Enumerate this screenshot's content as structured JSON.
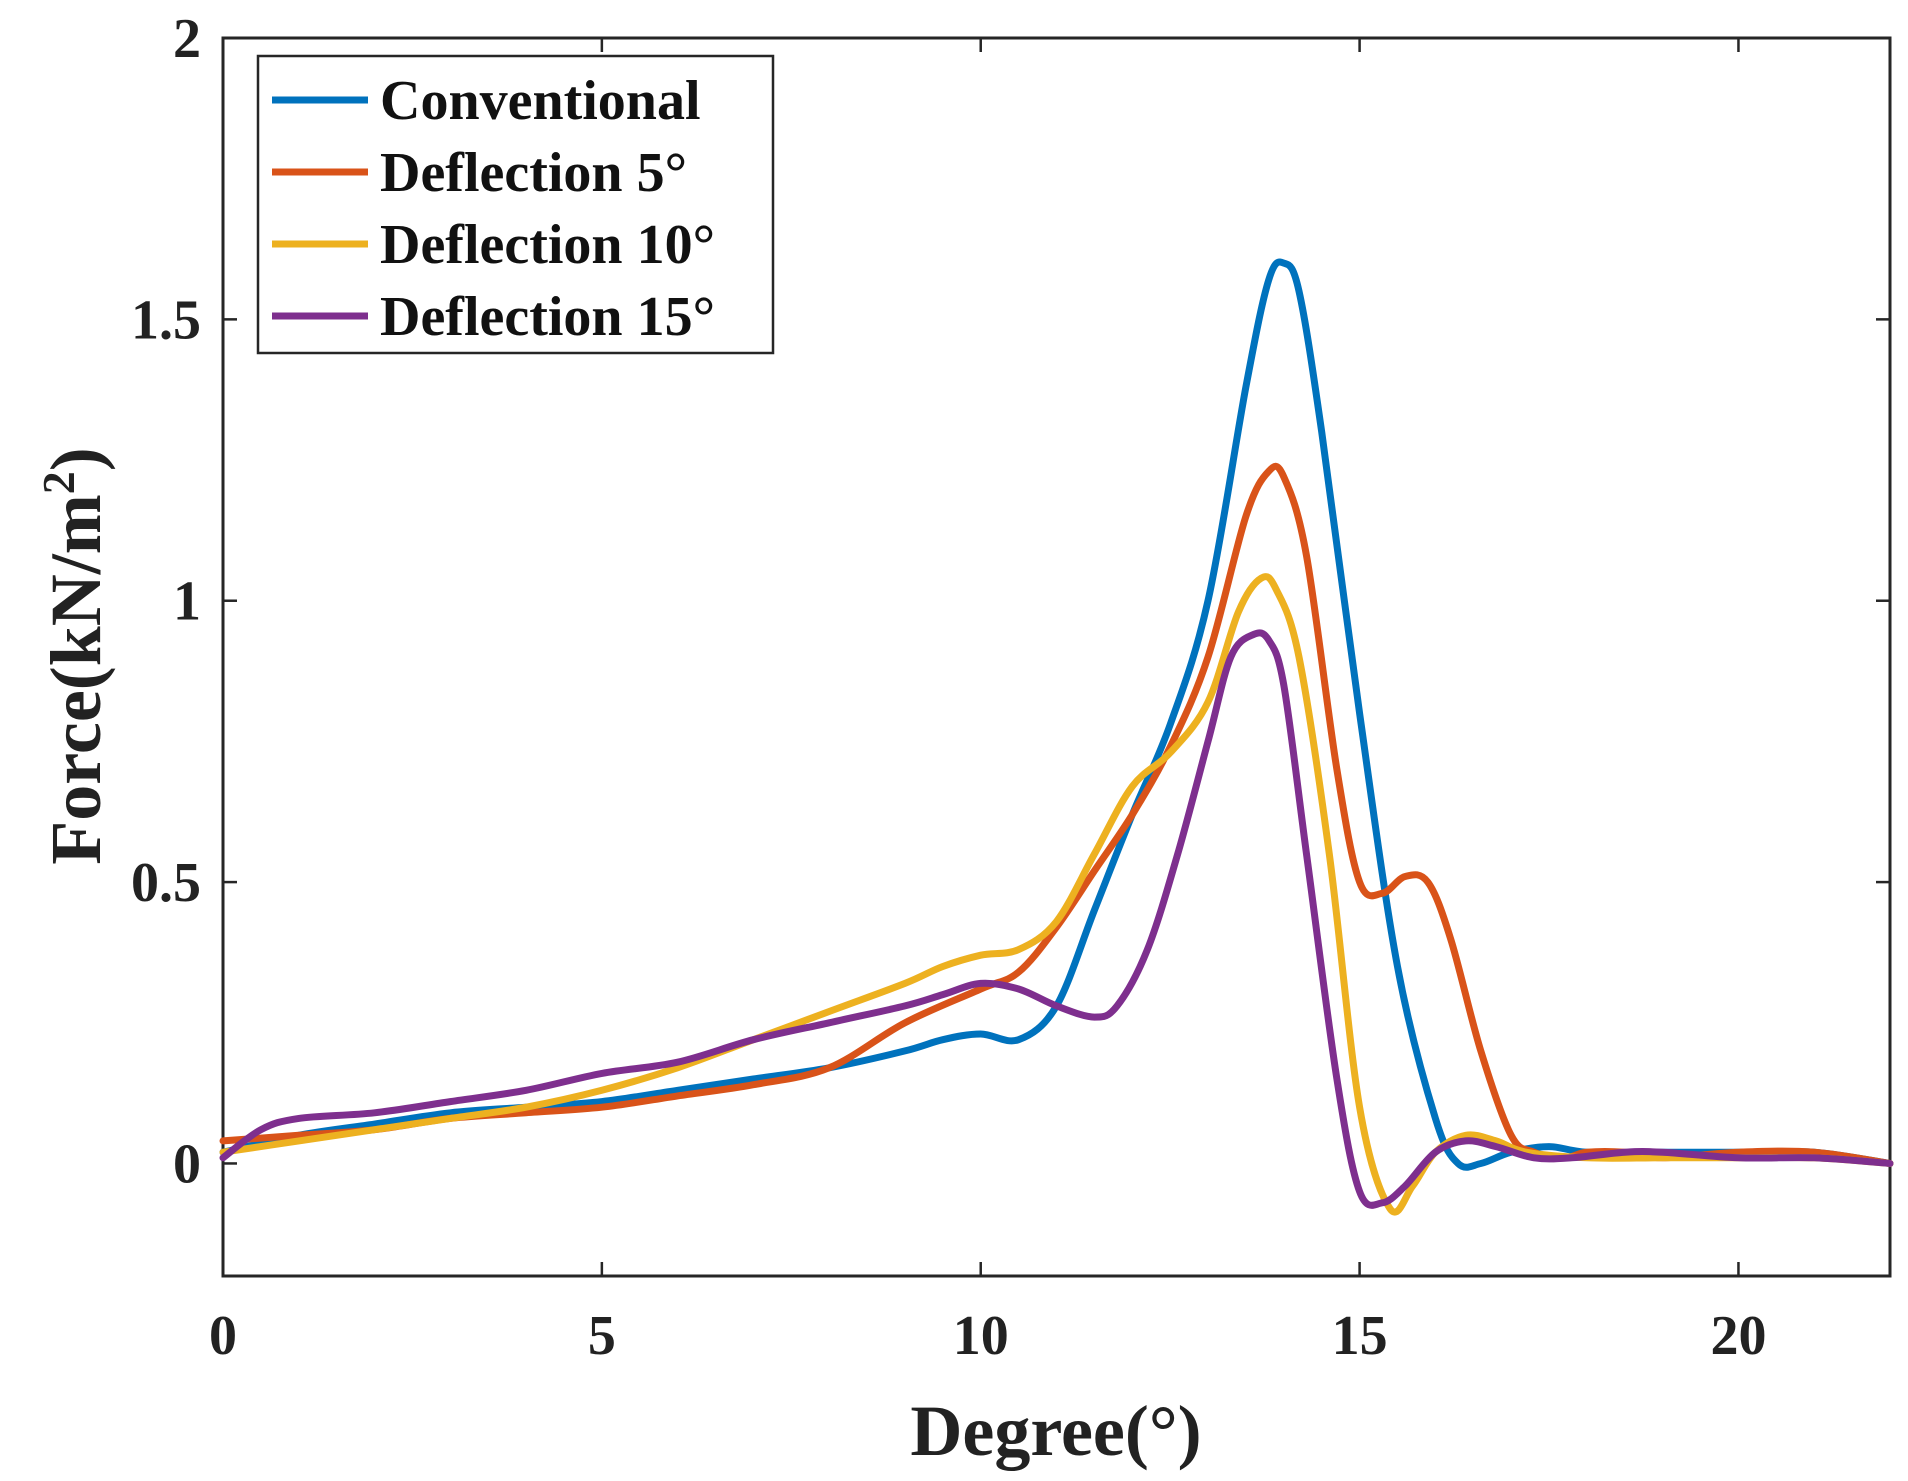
{
  "chart_data": {
    "type": "line",
    "title": "",
    "xlabel": "Degree(°)",
    "ylabel": "Force(kN/m",
    "ylabel_superscript": "2",
    "ylabel_suffix": ")",
    "xlim": [
      0,
      22
    ],
    "ylim": [
      -0.2,
      2
    ],
    "xticks": [
      0,
      5,
      10,
      15,
      20
    ],
    "xtick_labels": [
      "0",
      "5",
      "10",
      "15",
      "20"
    ],
    "yticks": [
      0,
      0.5,
      1,
      1.5,
      2
    ],
    "ytick_labels": [
      "0",
      "0.5",
      "1",
      "1.5",
      "2"
    ],
    "grid": false,
    "legend_position": "top-left",
    "series": [
      {
        "name": "Conventional",
        "color": "#0072BD",
        "x": [
          0,
          1,
          2,
          3,
          4,
          5,
          6,
          7,
          8,
          9,
          9.5,
          10,
          10.5,
          11,
          11.5,
          12,
          12.5,
          13,
          13.5,
          13.8,
          14,
          14.2,
          14.5,
          15,
          15.5,
          16,
          16.3,
          16.6,
          17,
          17.5,
          18,
          19,
          20,
          21,
          22
        ],
        "y": [
          0.02,
          0.05,
          0.07,
          0.09,
          0.1,
          0.11,
          0.13,
          0.15,
          0.17,
          0.2,
          0.22,
          0.23,
          0.22,
          0.28,
          0.45,
          0.62,
          0.78,
          1.0,
          1.38,
          1.57,
          1.6,
          1.55,
          1.3,
          0.8,
          0.35,
          0.08,
          0.0,
          0.0,
          0.02,
          0.03,
          0.02,
          0.02,
          0.02,
          0.02,
          0.0
        ]
      },
      {
        "name": "Deflection 5°",
        "color": "#D95319",
        "x": [
          0,
          1,
          2,
          3,
          4,
          5,
          6,
          7,
          8,
          9,
          10,
          10.5,
          11,
          11.5,
          12,
          12.5,
          13,
          13.5,
          13.8,
          14,
          14.3,
          14.7,
          15,
          15.3,
          15.6,
          15.9,
          16.2,
          16.6,
          17,
          17.3,
          17.7,
          18,
          18.5,
          19,
          20,
          21,
          22
        ],
        "y": [
          0.04,
          0.05,
          0.06,
          0.08,
          0.09,
          0.1,
          0.12,
          0.14,
          0.17,
          0.25,
          0.31,
          0.34,
          0.42,
          0.52,
          0.62,
          0.74,
          0.9,
          1.15,
          1.23,
          1.22,
          1.08,
          0.7,
          0.5,
          0.48,
          0.51,
          0.5,
          0.4,
          0.2,
          0.05,
          0.02,
          0.01,
          0.02,
          0.02,
          0.01,
          0.02,
          0.02,
          0.0
        ]
      },
      {
        "name": "Deflection 10°",
        "color": "#EDB120",
        "x": [
          0,
          1,
          2,
          3,
          4,
          5,
          6,
          7,
          8,
          9,
          9.5,
          10,
          10.5,
          11,
          11.5,
          12,
          12.5,
          13,
          13.4,
          13.7,
          13.9,
          14.2,
          14.6,
          15,
          15.4,
          15.7,
          16,
          16.4,
          16.8,
          17.2,
          18,
          19,
          20,
          21,
          22
        ],
        "y": [
          0.02,
          0.04,
          0.06,
          0.08,
          0.1,
          0.13,
          0.17,
          0.22,
          0.27,
          0.32,
          0.35,
          0.37,
          0.38,
          0.43,
          0.55,
          0.67,
          0.73,
          0.82,
          0.98,
          1.04,
          1.02,
          0.9,
          0.55,
          0.1,
          -0.08,
          -0.04,
          0.02,
          0.05,
          0.04,
          0.02,
          0.01,
          0.01,
          0.01,
          0.01,
          0.0
        ]
      },
      {
        "name": "Deflection 15°",
        "color": "#7E2F8E",
        "x": [
          0,
          0.5,
          1,
          2,
          3,
          4,
          5,
          6,
          7,
          8,
          9,
          9.5,
          10,
          10.5,
          11,
          11.5,
          11.8,
          12.2,
          12.6,
          13,
          13.3,
          13.6,
          13.8,
          14,
          14.3,
          14.7,
          15,
          15.3,
          15.6,
          16,
          16.4,
          16.8,
          17.3,
          17.8,
          18.5,
          19,
          20,
          21,
          22
        ],
        "y": [
          0.01,
          0.06,
          0.08,
          0.09,
          0.11,
          0.13,
          0.16,
          0.18,
          0.22,
          0.25,
          0.28,
          0.3,
          0.32,
          0.31,
          0.28,
          0.26,
          0.28,
          0.38,
          0.55,
          0.75,
          0.9,
          0.94,
          0.93,
          0.85,
          0.55,
          0.15,
          -0.05,
          -0.07,
          -0.04,
          0.02,
          0.04,
          0.03,
          0.01,
          0.01,
          0.02,
          0.02,
          0.01,
          0.01,
          0.0
        ]
      }
    ]
  }
}
